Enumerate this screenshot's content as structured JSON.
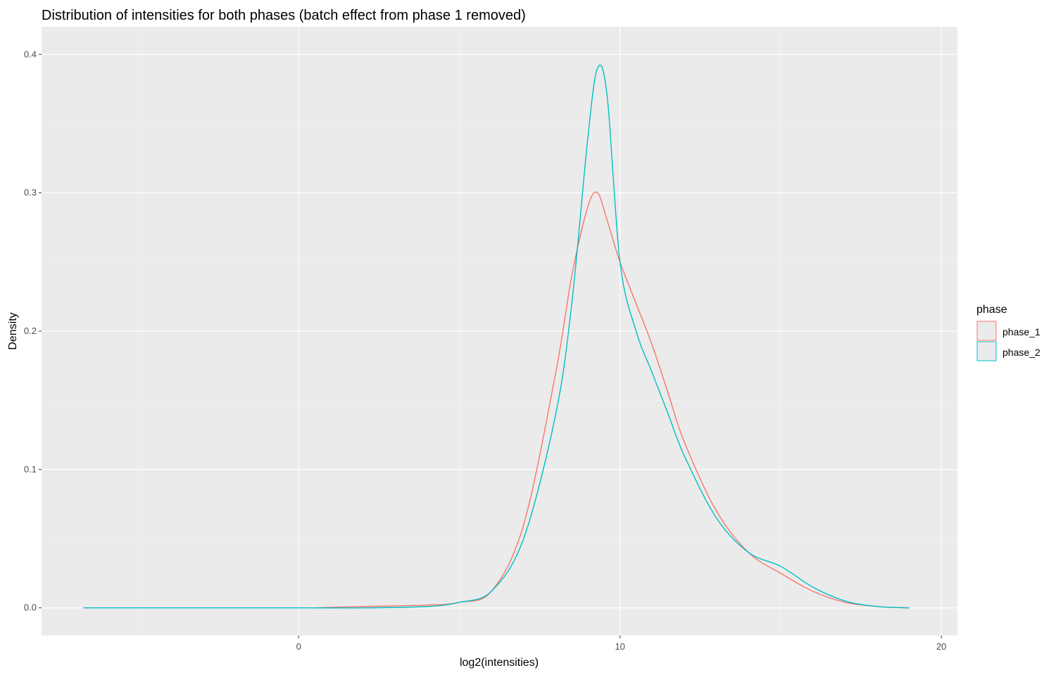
{
  "chart_data": {
    "type": "line",
    "title": "Distribution of intensities for both phases (batch effect from phase 1 removed)",
    "xlabel": "log2(intensities)",
    "ylabel": "Density",
    "xlim": [
      -8,
      20.5
    ],
    "ylim": [
      -0.02,
      0.42
    ],
    "x_ticks": [
      0,
      10,
      20
    ],
    "x_tick_labels": [
      "0",
      "10",
      "20"
    ],
    "y_ticks": [
      0.0,
      0.1,
      0.2,
      0.3,
      0.4
    ],
    "y_tick_labels": [
      "0.0",
      "0.1",
      "0.2",
      "0.3",
      "0.4"
    ],
    "grid": true,
    "legend": {
      "title": "phase",
      "position": "right",
      "entries": [
        {
          "label": "phase_1",
          "color": "#F8766D"
        },
        {
          "label": "phase_2",
          "color": "#00BFC4"
        }
      ]
    },
    "series": [
      {
        "name": "phase_1",
        "color": "#F8766D",
        "x": [
          0.5,
          2,
          4,
          5,
          6,
          7,
          8,
          8.5,
          9,
          9.3,
          9.6,
          10,
          10.5,
          11,
          11.5,
          12,
          13,
          14,
          15,
          16,
          17,
          18,
          19
        ],
        "y": [
          0.0,
          0.001,
          0.002,
          0.004,
          0.012,
          0.06,
          0.17,
          0.24,
          0.29,
          0.3,
          0.28,
          0.25,
          0.22,
          0.19,
          0.155,
          0.12,
          0.07,
          0.04,
          0.025,
          0.012,
          0.004,
          0.001,
          0.0
        ]
      },
      {
        "name": "phase_2",
        "color": "#00BFC4",
        "x": [
          -6.7,
          0,
          2,
          4,
          5,
          6,
          7,
          8,
          8.5,
          9,
          9.3,
          9.6,
          10,
          10.5,
          11,
          11.5,
          12,
          13,
          14,
          15,
          16,
          17,
          18,
          19
        ],
        "y": [
          0.0,
          0.0,
          0.0,
          0.001,
          0.004,
          0.012,
          0.05,
          0.14,
          0.22,
          0.34,
          0.39,
          0.37,
          0.25,
          0.2,
          0.17,
          0.14,
          0.11,
          0.065,
          0.04,
          0.03,
          0.015,
          0.005,
          0.001,
          0.0
        ]
      }
    ]
  }
}
